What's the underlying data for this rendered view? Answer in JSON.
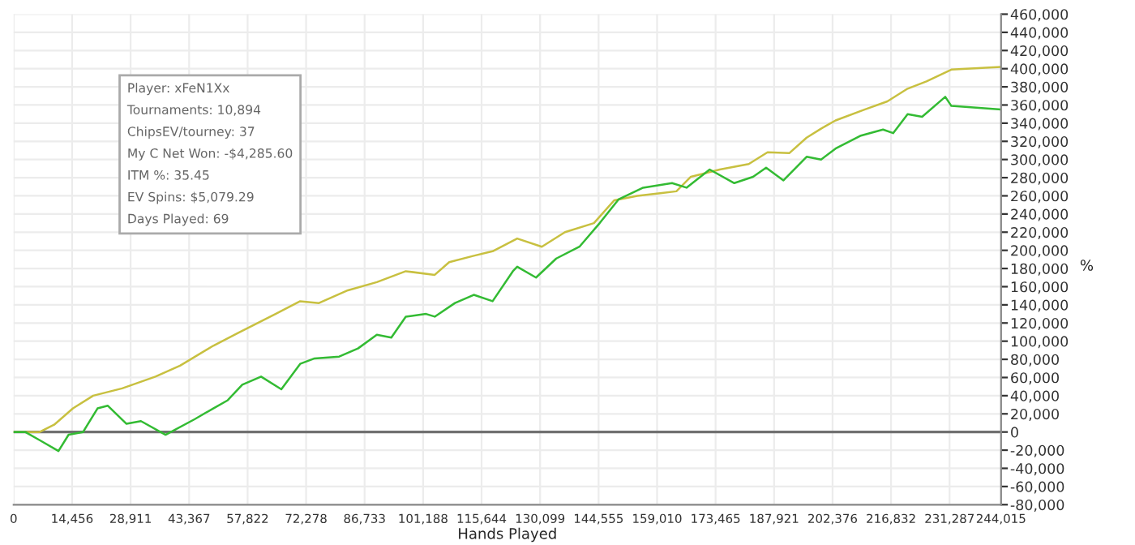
{
  "chart_data": {
    "type": "line",
    "xlabel": "Hands Played",
    "ylabel": "%",
    "xlim": [
      0,
      244015
    ],
    "xticks": [
      0,
      {
        "value": 14456,
        "label": "14,456"
      },
      {
        "value": 28911,
        "label": "28,911"
      },
      {
        "value": 43367,
        "label": "43,367"
      },
      {
        "value": 57822,
        "label": "57,822"
      },
      {
        "value": 72278,
        "label": "72,278"
      },
      {
        "value": 86733,
        "label": "86,733"
      },
      {
        "value": 101188,
        "label": "101,188"
      },
      {
        "value": 115644,
        "label": "115,644"
      },
      {
        "value": 130099,
        "label": "130,099"
      },
      {
        "value": 144555,
        "label": "144,555"
      },
      {
        "value": 159010,
        "label": "159,010"
      },
      {
        "value": 173465,
        "label": "173,465"
      },
      {
        "value": 187921,
        "label": "187,921"
      },
      {
        "value": 202376,
        "label": "202,376"
      },
      {
        "value": 216832,
        "label": "216,832"
      },
      {
        "value": 231287,
        "label": "231,287"
      },
      {
        "value": 244015,
        "label": "244,015"
      }
    ],
    "ylim": [
      -80000,
      460000
    ],
    "yticks": [
      {
        "value": -80000,
        "label": "-80,000"
      },
      {
        "value": -60000,
        "label": "-60,000"
      },
      {
        "value": -40000,
        "label": "-40,000"
      },
      {
        "value": -20000,
        "label": "-20,000"
      },
      0,
      {
        "value": 20000,
        "label": "20,000"
      },
      {
        "value": 40000,
        "label": "40,000"
      },
      {
        "value": 60000,
        "label": "60,000"
      },
      {
        "value": 80000,
        "label": "80,000"
      },
      {
        "value": 100000,
        "label": "100,000"
      },
      {
        "value": 120000,
        "label": "120,000"
      },
      {
        "value": 140000,
        "label": "140,000"
      },
      {
        "value": 160000,
        "label": "160,000"
      },
      {
        "value": 180000,
        "label": "180,000"
      },
      {
        "value": 200000,
        "label": "200,000"
      },
      {
        "value": 220000,
        "label": "220,000"
      },
      {
        "value": 240000,
        "label": "240,000"
      },
      {
        "value": 260000,
        "label": "260,000"
      },
      {
        "value": 280000,
        "label": "280,000"
      },
      {
        "value": 300000,
        "label": "300,000"
      },
      {
        "value": 320000,
        "label": "320,000"
      },
      {
        "value": 340000,
        "label": "340,000"
      },
      {
        "value": 360000,
        "label": "360,000"
      },
      {
        "value": 380000,
        "label": "380,000"
      },
      {
        "value": 400000,
        "label": "400,000"
      },
      {
        "value": 420000,
        "label": "420,000"
      },
      {
        "value": 440000,
        "label": "440,000"
      },
      {
        "value": 460000,
        "label": "460,000"
      }
    ],
    "grid": true,
    "marker": "none",
    "line_style": "solid",
    "ref_lines": [
      {
        "axis": "y",
        "value": 0,
        "color": "#707070"
      }
    ],
    "annotations": [
      "Player: xFeN1Xx",
      "Tournaments: 10,894",
      "ChipsEV/tourney: 37",
      "My C Net Won: -$4,285.60",
      "ITM %: 35.45",
      "EV Spins: $5,079.29",
      "Days Played: 69"
    ],
    "series": [
      {
        "color": "#c8c040",
        "x": [
          0,
          6437,
          10013,
          14662,
          19668,
          26820,
          35045,
          41124,
          49349,
          55428,
          64726,
          70805,
          75454,
          82606,
          89757,
          96910,
          104062,
          107638,
          113717,
          118366,
          124445,
          130524,
          136246,
          143398,
          148405,
          154127,
          160206,
          163782,
          167358,
          174510,
          181661,
          186310,
          191674,
          195965,
          199541,
          203117,
          210269,
          215918,
          220924,
          225573,
          231725,
          244015
        ],
        "values": [
          0,
          0,
          8000,
          26000,
          40000,
          48000,
          61000,
          73000,
          95000,
          109000,
          130000,
          144000,
          142000,
          156000,
          165000,
          177000,
          173000,
          187000,
          194000,
          199000,
          213000,
          204000,
          220000,
          230000,
          255000,
          260000,
          263000,
          265000,
          281000,
          289000,
          295000,
          308000,
          307000,
          324000,
          334000,
          343000,
          355000,
          364000,
          378000,
          386000,
          399000,
          402000
        ]
      },
      {
        "color": "#33bb33",
        "x": [
          0,
          2861,
          6437,
          11086,
          13589,
          17165,
          20741,
          23244,
          27893,
          31469,
          37548,
          44700,
          49349,
          52925,
          56501,
          61150,
          66156,
          70805,
          74381,
          80460,
          85109,
          89757,
          93333,
          96910,
          101916,
          104062,
          109068,
          113717,
          118366,
          123372,
          124445,
          129094,
          134100,
          139822,
          144828,
          149478,
          155557,
          162709,
          166285,
          172007,
          178086,
          182734,
          185952,
          190244,
          195965,
          199541,
          203117,
          209196,
          214845,
          217348,
          220924,
          224500,
          230222,
          231725,
          244015
        ],
        "values": [
          0,
          0,
          -9000,
          -21000,
          -3000,
          0,
          26000,
          29000,
          9000,
          12000,
          -3000,
          14000,
          26000,
          35000,
          52000,
          61000,
          47000,
          75000,
          81000,
          83000,
          92000,
          107000,
          104000,
          127000,
          130000,
          127000,
          142000,
          151000,
          144000,
          177000,
          182000,
          170000,
          191000,
          204000,
          230000,
          256000,
          269000,
          274000,
          269000,
          289000,
          274000,
          281000,
          291000,
          277000,
          303000,
          300000,
          312000,
          326000,
          333000,
          329000,
          350000,
          347000,
          369000,
          359000,
          355000
        ]
      }
    ]
  }
}
